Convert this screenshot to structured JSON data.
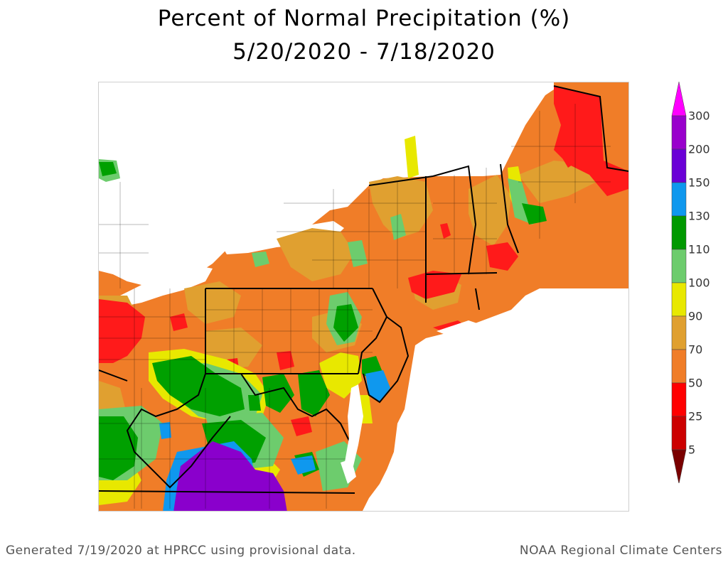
{
  "title": {
    "line1": "Percent of Normal Precipitation (%)",
    "line2": "5/20/2020 - 7/18/2020"
  },
  "legend": {
    "labels": [
      "300",
      "200",
      "150",
      "130",
      "110",
      "100",
      "90",
      "70",
      "50",
      "25",
      "5"
    ],
    "colors": [
      "#ff00ff",
      "#9900cc",
      "#6a00d6",
      "#0f98ee",
      "#009900",
      "#6dcc6d",
      "#e8e800",
      "#e0a030",
      "#f07d28",
      "#ff0000",
      "#cc0000",
      "#7a0000"
    ]
  },
  "map": {
    "colors": {
      "water": "#ffffff",
      "background": "#ffffff",
      "orange": "#f07d28",
      "tan": "#e0a030",
      "red": "#ff1a1a",
      "yellow": "#e8e800",
      "lightgreen": "#6dcc6d",
      "green": "#00a000",
      "blue": "#0f98ee",
      "purple": "#8a00cc",
      "borders": "#000000"
    }
  },
  "footer": {
    "left": "Generated 7/19/2020 at HPRCC using provisional data.",
    "right": "NOAA Regional Climate Centers"
  }
}
